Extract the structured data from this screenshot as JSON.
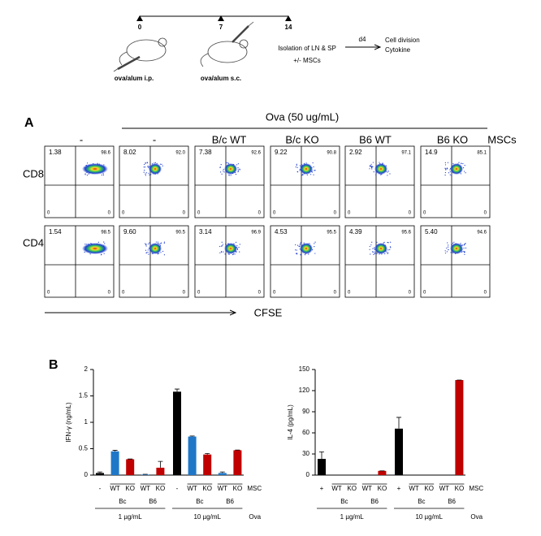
{
  "timeline": {
    "days": [
      "0",
      "7",
      "14"
    ],
    "injections": [
      "ova/alum i.p.",
      "ova/alum s.c."
    ],
    "isolation": [
      "Isolation of LN & SP",
      "+/- MSCs"
    ],
    "arrow_label": "d4",
    "readouts": [
      "Cell division",
      "Cytokine"
    ]
  },
  "panel_a": {
    "label": "A",
    "condition": "Ova (50 ug/mL)",
    "columns": [
      "-",
      "-",
      "B/c WT",
      "B/c KO",
      "B6 WT",
      "B6 KO"
    ],
    "column_header_label": "MSCs",
    "rows": [
      {
        "name": "CD8",
        "plots": [
          [
            "1.38",
            "98.6",
            "0",
            "0"
          ],
          [
            "8.02",
            "92.0",
            "0",
            "0"
          ],
          [
            "7.38",
            "92.6",
            "0",
            "0"
          ],
          [
            "9.22",
            "90.8",
            "0",
            "0"
          ],
          [
            "2.92",
            "97.1",
            "0",
            "0"
          ],
          [
            "14.9",
            "85.1",
            "0",
            "0"
          ]
        ]
      },
      {
        "name": "CD4",
        "plots": [
          [
            "1.54",
            "98.5",
            "0",
            "0"
          ],
          [
            "9.60",
            "90.5",
            "0",
            "0"
          ],
          [
            "3.14",
            "96.9",
            "0",
            "0"
          ],
          [
            "4.53",
            "95.5",
            "0",
            "0"
          ],
          [
            "4.39",
            "95.6",
            "0",
            "0"
          ],
          [
            "5.40",
            "94.6",
            "0",
            "0"
          ]
        ]
      }
    ],
    "x_label": "CFSE"
  },
  "panel_b_label": "B",
  "chart_data": [
    {
      "type": "bar",
      "ylabel": "IFN-γ (ng/mL)",
      "categories": [
        "-",
        "WT",
        "KO",
        "WT",
        "KO",
        "-",
        "WT",
        "KO",
        "WT",
        "KO"
      ],
      "values": [
        0.04,
        0.45,
        0.3,
        0.01,
        0.14,
        1.58,
        0.73,
        0.39,
        0.04,
        0.47
      ],
      "errors": [
        0.02,
        0.02,
        0.005,
        0.005,
        0.12,
        0.05,
        0.01,
        0.02,
        0.02,
        0.005
      ],
      "colors": [
        "#000000",
        "#1f77c8",
        "#c00000",
        "#1f77c8",
        "#c00000",
        "#000000",
        "#1f77c8",
        "#c00000",
        "#1f77c8",
        "#c00000"
      ],
      "ylim": [
        0,
        2
      ],
      "yticks": [
        0,
        0.5,
        1,
        1.5,
        2
      ],
      "groups": [
        "Bc",
        "B6",
        "Bc",
        "B6"
      ],
      "doses": [
        "1 µg/mL",
        "10 µg/mL"
      ],
      "dose_label": "Ova",
      "msc_label": "MSC"
    },
    {
      "type": "bar",
      "ylabel": "IL-4 (pg/mL)",
      "categories": [
        "+",
        "WT",
        "KO",
        "WT",
        "KO",
        "+",
        "WT",
        "KO",
        "WT",
        "KO"
      ],
      "values": [
        23,
        0,
        0,
        0,
        6,
        66,
        0,
        0,
        0,
        135
      ],
      "errors": [
        10,
        0,
        0,
        0,
        0,
        16,
        0,
        0,
        0,
        0
      ],
      "colors": [
        "#000000",
        "#1f77c8",
        "#c00000",
        "#1f77c8",
        "#c00000",
        "#000000",
        "#1f77c8",
        "#c00000",
        "#1f77c8",
        "#c00000"
      ],
      "ylim": [
        0,
        150
      ],
      "yticks": [
        0,
        30,
        60,
        90,
        120,
        150
      ],
      "groups": [
        "Bc",
        "B6",
        "Bc",
        "B6"
      ],
      "doses": [
        "1 µg/mL",
        "10 µg/mL"
      ],
      "dose_label": "Ova",
      "msc_label": "MSC"
    }
  ]
}
